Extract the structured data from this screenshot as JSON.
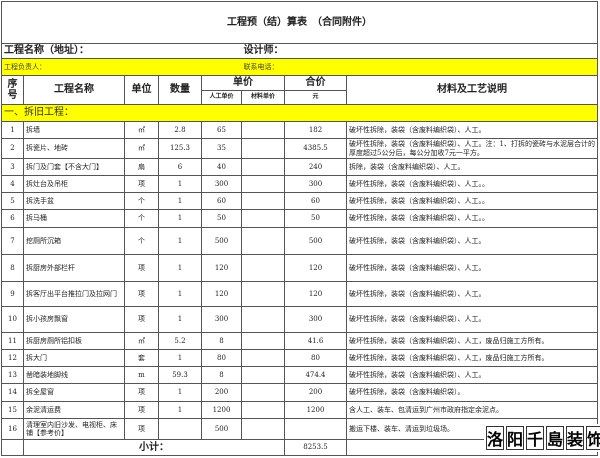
{
  "title": "工程预（结）算表　（合同附件）",
  "project_label": "工程名称（地址）：",
  "designer_label": "设计师：",
  "manager_label": "工程负责人：",
  "phone_label": "联系电话：",
  "headers": {
    "no": "序号",
    "name": "工程名称",
    "unit": "单位",
    "qty": "数量",
    "unit_price": "单价",
    "labor": "人工单价",
    "material": "材料单价",
    "total": "合价",
    "total_unit": "元",
    "desc": "材料及工艺说明"
  },
  "section": "一、拆旧工程：",
  "rows": [
    {
      "no": "1",
      "name": "拆墙",
      "unit": "㎡",
      "qty": "2.8",
      "labor": "65",
      "material": "",
      "total": "182",
      "desc": "破坏性拆除，装袋（含废料编织袋）、人工。"
    },
    {
      "no": "2",
      "name": "拆瓷片、地砖",
      "unit": "㎡",
      "qty": "125.3",
      "labor": "35",
      "material": "",
      "total": "4385.5",
      "desc": "破坏性拆除，装袋（含废料编织袋）、人工。注：1、打拆的瓷砖与水泥层合计的厚度超过5公分后，每公分加收7元一平方。"
    },
    {
      "no": "3",
      "name": "拆门及门套【不含大门】",
      "unit": "扇",
      "qty": "6",
      "labor": "40",
      "material": "",
      "total": "240",
      "desc": "拆除，装袋（含废料编织袋）、人工。"
    },
    {
      "no": "4",
      "name": "拆灶台及吊柜",
      "unit": "项",
      "qty": "1",
      "labor": "300",
      "material": "",
      "total": "300",
      "desc": "破坏性拆除，装袋（含废料编织袋）、人工。。"
    },
    {
      "no": "5",
      "name": "拆洗手盆",
      "unit": "个",
      "qty": "1",
      "labor": "60",
      "material": "",
      "total": "60",
      "desc": "破坏性拆除，装袋（含废料编织袋）、人工。。"
    },
    {
      "no": "6",
      "name": "拆马桶",
      "unit": "个",
      "qty": "1",
      "labor": "50",
      "material": "",
      "total": "50",
      "desc": "破坏性拆除，装袋（含废料编织袋）、人工。。"
    },
    {
      "no": "7",
      "name": "挖厕所沉箱",
      "unit": "个",
      "qty": "1",
      "labor": "500",
      "material": "",
      "total": "500",
      "desc": "破坏性拆除，装袋（含废料编织袋）、人工。"
    },
    {
      "no": "8",
      "name": "拆厨房外部栏杆",
      "unit": "项",
      "qty": "1",
      "labor": "120",
      "material": "",
      "total": "120",
      "desc": "破坏性拆除，装袋（含废料编织袋）、人工。"
    },
    {
      "no": "9",
      "name": "拆客厅出平台推拉门及拉网门",
      "unit": "项",
      "qty": "1",
      "labor": "120",
      "material": "",
      "total": "120",
      "desc": "破坏性拆除，装袋（含废料编织袋）、人工。"
    },
    {
      "no": "10",
      "name": "拆小孩房飘窗",
      "unit": "项",
      "qty": "1",
      "labor": "300",
      "material": "",
      "total": "300",
      "desc": "破坏性拆除，装袋（含废料编织袋）、人工。"
    },
    {
      "no": "11",
      "name": "拆厨房厕所铝扣板",
      "unit": "㎡",
      "qty": "5.2",
      "labor": "8",
      "material": "",
      "total": "41.6",
      "desc": "破坏性拆除，装袋（含废料编织袋）、人工，废品归施工方所有。"
    },
    {
      "no": "12",
      "name": "拆大门",
      "unit": "套",
      "qty": "1",
      "labor": "80",
      "material": "",
      "total": "80",
      "desc": "破坏性拆除，装袋（含废料编织袋）、人工，废品归施工方所有。"
    },
    {
      "no": "13",
      "name": "凿暗装地脚线",
      "unit": "m",
      "qty": "59.3",
      "labor": "8",
      "material": "",
      "total": "474.4",
      "desc": "破坏性拆除，装袋（含废料编织袋）、人工。"
    },
    {
      "no": "14",
      "name": "拆全屋窗",
      "unit": "项",
      "qty": "1",
      "labor": "200",
      "material": "",
      "total": "200",
      "desc": "破坏性拆除，装袋（含废料编织袋）。"
    },
    {
      "no": "15",
      "name": "余泥清运费",
      "unit": "项",
      "qty": "1",
      "labor": "1200",
      "material": "",
      "total": "1200",
      "desc": "含人工、装车、包清运到广州市政府指定余泥点。"
    },
    {
      "no": "16",
      "name": "清理室内旧沙发、电视柜、床铺【参考价】",
      "unit": "项",
      "qty": "",
      "labor": "500",
      "material": "",
      "total": "",
      "desc": "搬运下楼、装车、清运到垃圾场。"
    }
  ],
  "subtotal_label": "小计：",
  "subtotal": "8253.5",
  "watermark": [
    "洛",
    "阳",
    "千",
    "島",
    "装",
    "饰"
  ],
  "colors": {
    "highlight": "#ffff00"
  }
}
